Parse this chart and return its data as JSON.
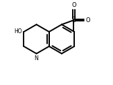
{
  "bg_color": "#ffffff",
  "line_color": "#000000",
  "line_width": 1.4,
  "figsize": [
    1.63,
    1.23
  ],
  "dpi": 100,
  "xlim": [
    -0.05,
    1.15
  ],
  "ylim": [
    0.05,
    0.97
  ]
}
